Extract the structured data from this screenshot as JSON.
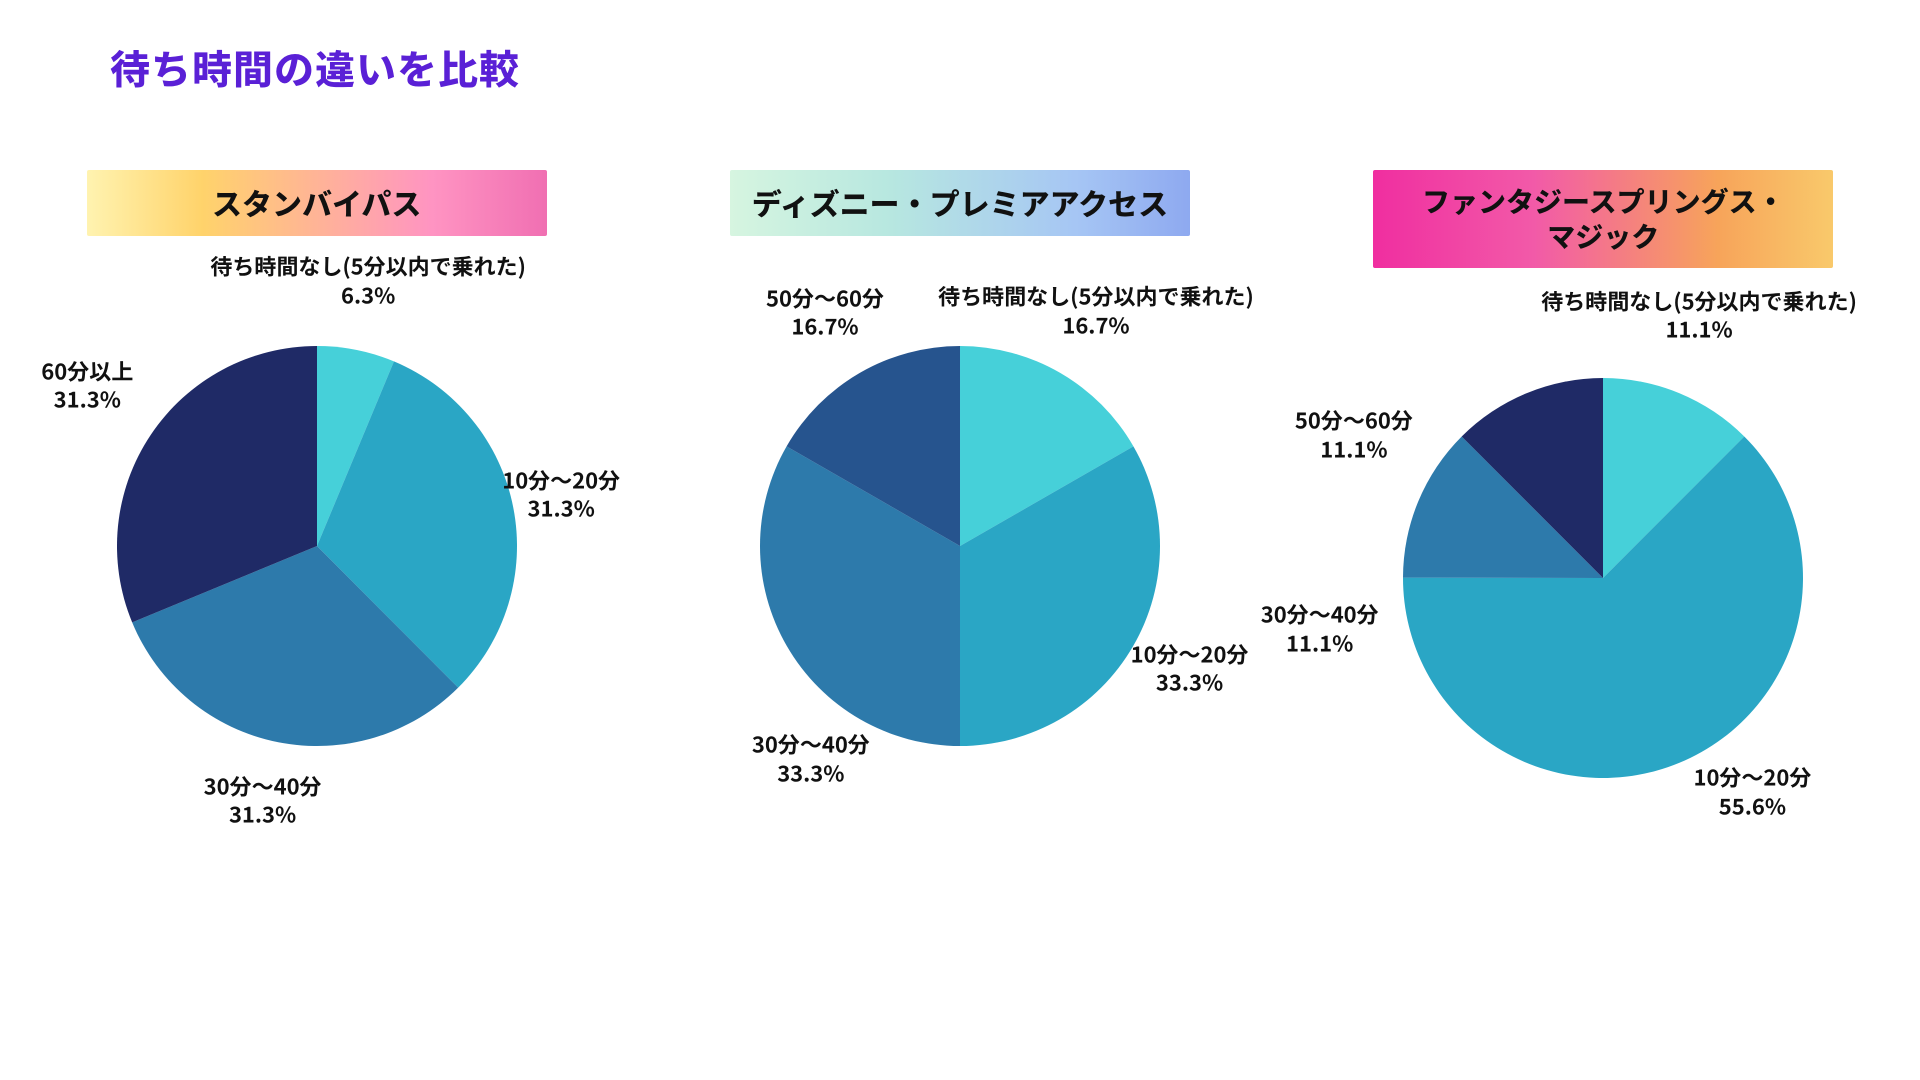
{
  "title": "待ち時間の違いを比較",
  "title_color": "#5a20d6",
  "background_color": "#ffffff",
  "label_font_size": 22,
  "label_font_weight": 700,
  "label_color": "#111111",
  "header_font_size": 30,
  "pie_radius": 200,
  "panels": [
    {
      "header": "スタンバイパス",
      "header_gradient": [
        "#fff3b0",
        "#ffd36b",
        "#ff94c2",
        "#f06fb2"
      ],
      "header_class": "header-gradient-1",
      "slices": [
        {
          "label": "待ち時間なし(5分以内で乗れた)",
          "value": 6.3,
          "pct_text": "6.3%",
          "color": "#46d0d9",
          "label_r": 1.35,
          "label_angle_deg": 11
        },
        {
          "label": "10分〜20分",
          "value": 31.3,
          "pct_text": "31.3%",
          "color": "#2aa6c5",
          "label_r": 1.25,
          "label_angle_deg": 78
        },
        {
          "label": "30分〜40分",
          "value": 31.3,
          "pct_text": "31.3%",
          "color": "#2d7aab",
          "label_r": 1.3,
          "label_angle_deg": 192
        },
        {
          "label": "60分以上",
          "value": 31.3,
          "pct_text": "31.3%",
          "color": "#1f2a66",
          "label_r": 1.4,
          "label_angle_deg": 305,
          "label_override": "60分以上"
        }
      ]
    },
    {
      "header": "ディズニー・プレミアアクセス",
      "header_gradient": [
        "#d6f5e0",
        "#b7e7e0",
        "#a6c6f4",
        "#8ea9f0"
      ],
      "header_class": "header-gradient-2",
      "slices": [
        {
          "label": "待ち時間なし(5分以内で乗れた)",
          "value": 16.7,
          "pct_text": "16.7%",
          "color": "#46d0d9",
          "label_r": 1.36,
          "label_angle_deg": 30
        },
        {
          "label": "10分〜20分",
          "value": 33.3,
          "pct_text": "33.3%",
          "color": "#2aa6c5",
          "label_r": 1.3,
          "label_angle_deg": 118
        },
        {
          "label": "30分〜40分",
          "value": 33.3,
          "pct_text": "33.3%",
          "color": "#2d7aab",
          "label_r": 1.3,
          "label_angle_deg": 215
        },
        {
          "label": "50分〜60分",
          "value": 16.7,
          "pct_text": "16.7%",
          "color": "#26548e",
          "label_r": 1.35,
          "label_angle_deg": 330
        }
      ]
    },
    {
      "header": "ファンタジースプリングス・\nマジック",
      "header_gradient": [
        "#f02ea0",
        "#f25aa8",
        "#f7a45a",
        "#f9c96b"
      ],
      "header_class": "header-gradient-3",
      "lines2": true,
      "slices": [
        {
          "label": "待ち時間なし(5分以内で乗れた)",
          "value": 11.1,
          "pct_text": "11.1%",
          "color": "#46d0d9",
          "label_r": 1.4,
          "label_angle_deg": 20
        },
        {
          "label": "10分〜20分",
          "value": 55.6,
          "pct_text": "55.6%",
          "color": "#2aa6c5",
          "label_r": 1.3,
          "label_angle_deg": 145
        },
        {
          "label": "30分〜40分",
          "value": 11.1,
          "pct_text": "11.1%",
          "color": "#2d7aab",
          "label_r": 1.44,
          "label_angle_deg": 260
        },
        {
          "label": "50分〜60分",
          "value": 11.1,
          "pct_text": "11.1%",
          "color": "#1f2a66",
          "label_r": 1.44,
          "label_angle_deg": 300
        }
      ],
      "has_sixty_plus_tiny": false
    }
  ]
}
